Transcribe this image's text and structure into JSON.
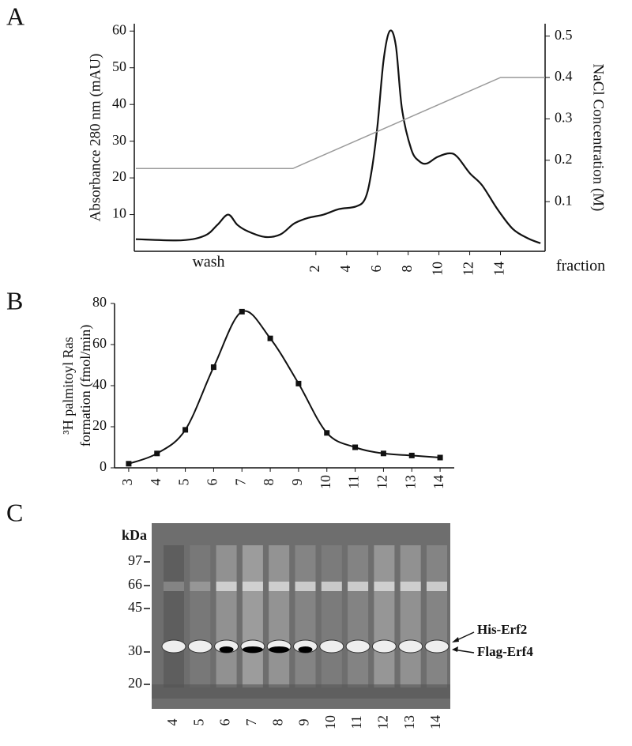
{
  "panel_labels": [
    "A",
    "B",
    "C"
  ],
  "chart_data": [
    {
      "type": "line",
      "y_label": "Absorbance 280 nm (mAU)",
      "y2_label": "NaCl Concentration (M)",
      "x_label": "fraction",
      "annotations": [
        "wash"
      ],
      "xlim": [
        -9.8,
        16.9
      ],
      "xticks": [
        2,
        4,
        6,
        8,
        10,
        12,
        14
      ],
      "ylim": [
        0,
        62
      ],
      "yticks": [
        10,
        20,
        30,
        40,
        50,
        60
      ],
      "y2lim": [
        -0.02,
        0.53
      ],
      "y2ticks": [
        0.1,
        0.2,
        0.3,
        0.4,
        0.5
      ],
      "series": [
        {
          "color": "#111111",
          "x": [
            -9.7,
            -6.7,
            -5.2,
            -4.4,
            -3.7,
            -3.1,
            -2.4,
            -1.3,
            -0.3,
            0.6,
            1.5,
            2.5,
            3.5,
            4.6,
            5.2,
            5.6,
            6,
            6.4,
            6.8,
            7.2,
            7.6,
            8.2,
            8.7,
            9.2,
            9.9,
            10.7,
            11.2,
            12,
            12.8,
            13.8,
            14.8,
            15.8,
            16.6
          ],
          "values": [
            3.3,
            3,
            4.3,
            7.2,
            10,
            7.2,
            5.4,
            3.9,
            4.6,
            7.6,
            9.1,
            10,
            11.5,
            12.2,
            14.3,
            21.3,
            34,
            52,
            60,
            56,
            38.7,
            27.8,
            24.6,
            23.9,
            25.7,
            26.7,
            25.7,
            21.3,
            18,
            11.5,
            6.1,
            3.5,
            2.2
          ]
        },
        {
          "color": "#9a9a9a",
          "axis": "y2",
          "x": [
            -9.7,
            0.5,
            14,
            16.9
          ],
          "values": [
            0.18,
            0.18,
            0.4,
            0.4
          ]
        }
      ]
    },
    {
      "type": "line",
      "y_label": [
        "³H palmitoyl Ras",
        "formation (fmol/min)"
      ],
      "color": "#111111",
      "x": [
        3,
        4,
        5,
        6,
        7,
        8,
        9,
        10,
        11,
        12,
        13,
        14
      ],
      "values": [
        2,
        7,
        18.5,
        49,
        76,
        63,
        41,
        17,
        10,
        7,
        6,
        5
      ],
      "xlim": [
        2.5,
        14.5
      ],
      "xticks": [
        3,
        4,
        5,
        6,
        7,
        8,
        9,
        10,
        11,
        12,
        13,
        14
      ],
      "ylim": [
        0,
        80
      ],
      "yticks": [
        0,
        20,
        40,
        60,
        80
      ]
    }
  ],
  "gel": {
    "kda_label": "kDa",
    "markers": [
      "97",
      "66",
      "45",
      "30",
      "20"
    ],
    "bands": [
      "His-Erf2",
      "Flag-Erf4"
    ],
    "lanes": [
      "4",
      "5",
      "6",
      "7",
      "8",
      "9",
      "10",
      "11",
      "12",
      "13",
      "14"
    ]
  }
}
